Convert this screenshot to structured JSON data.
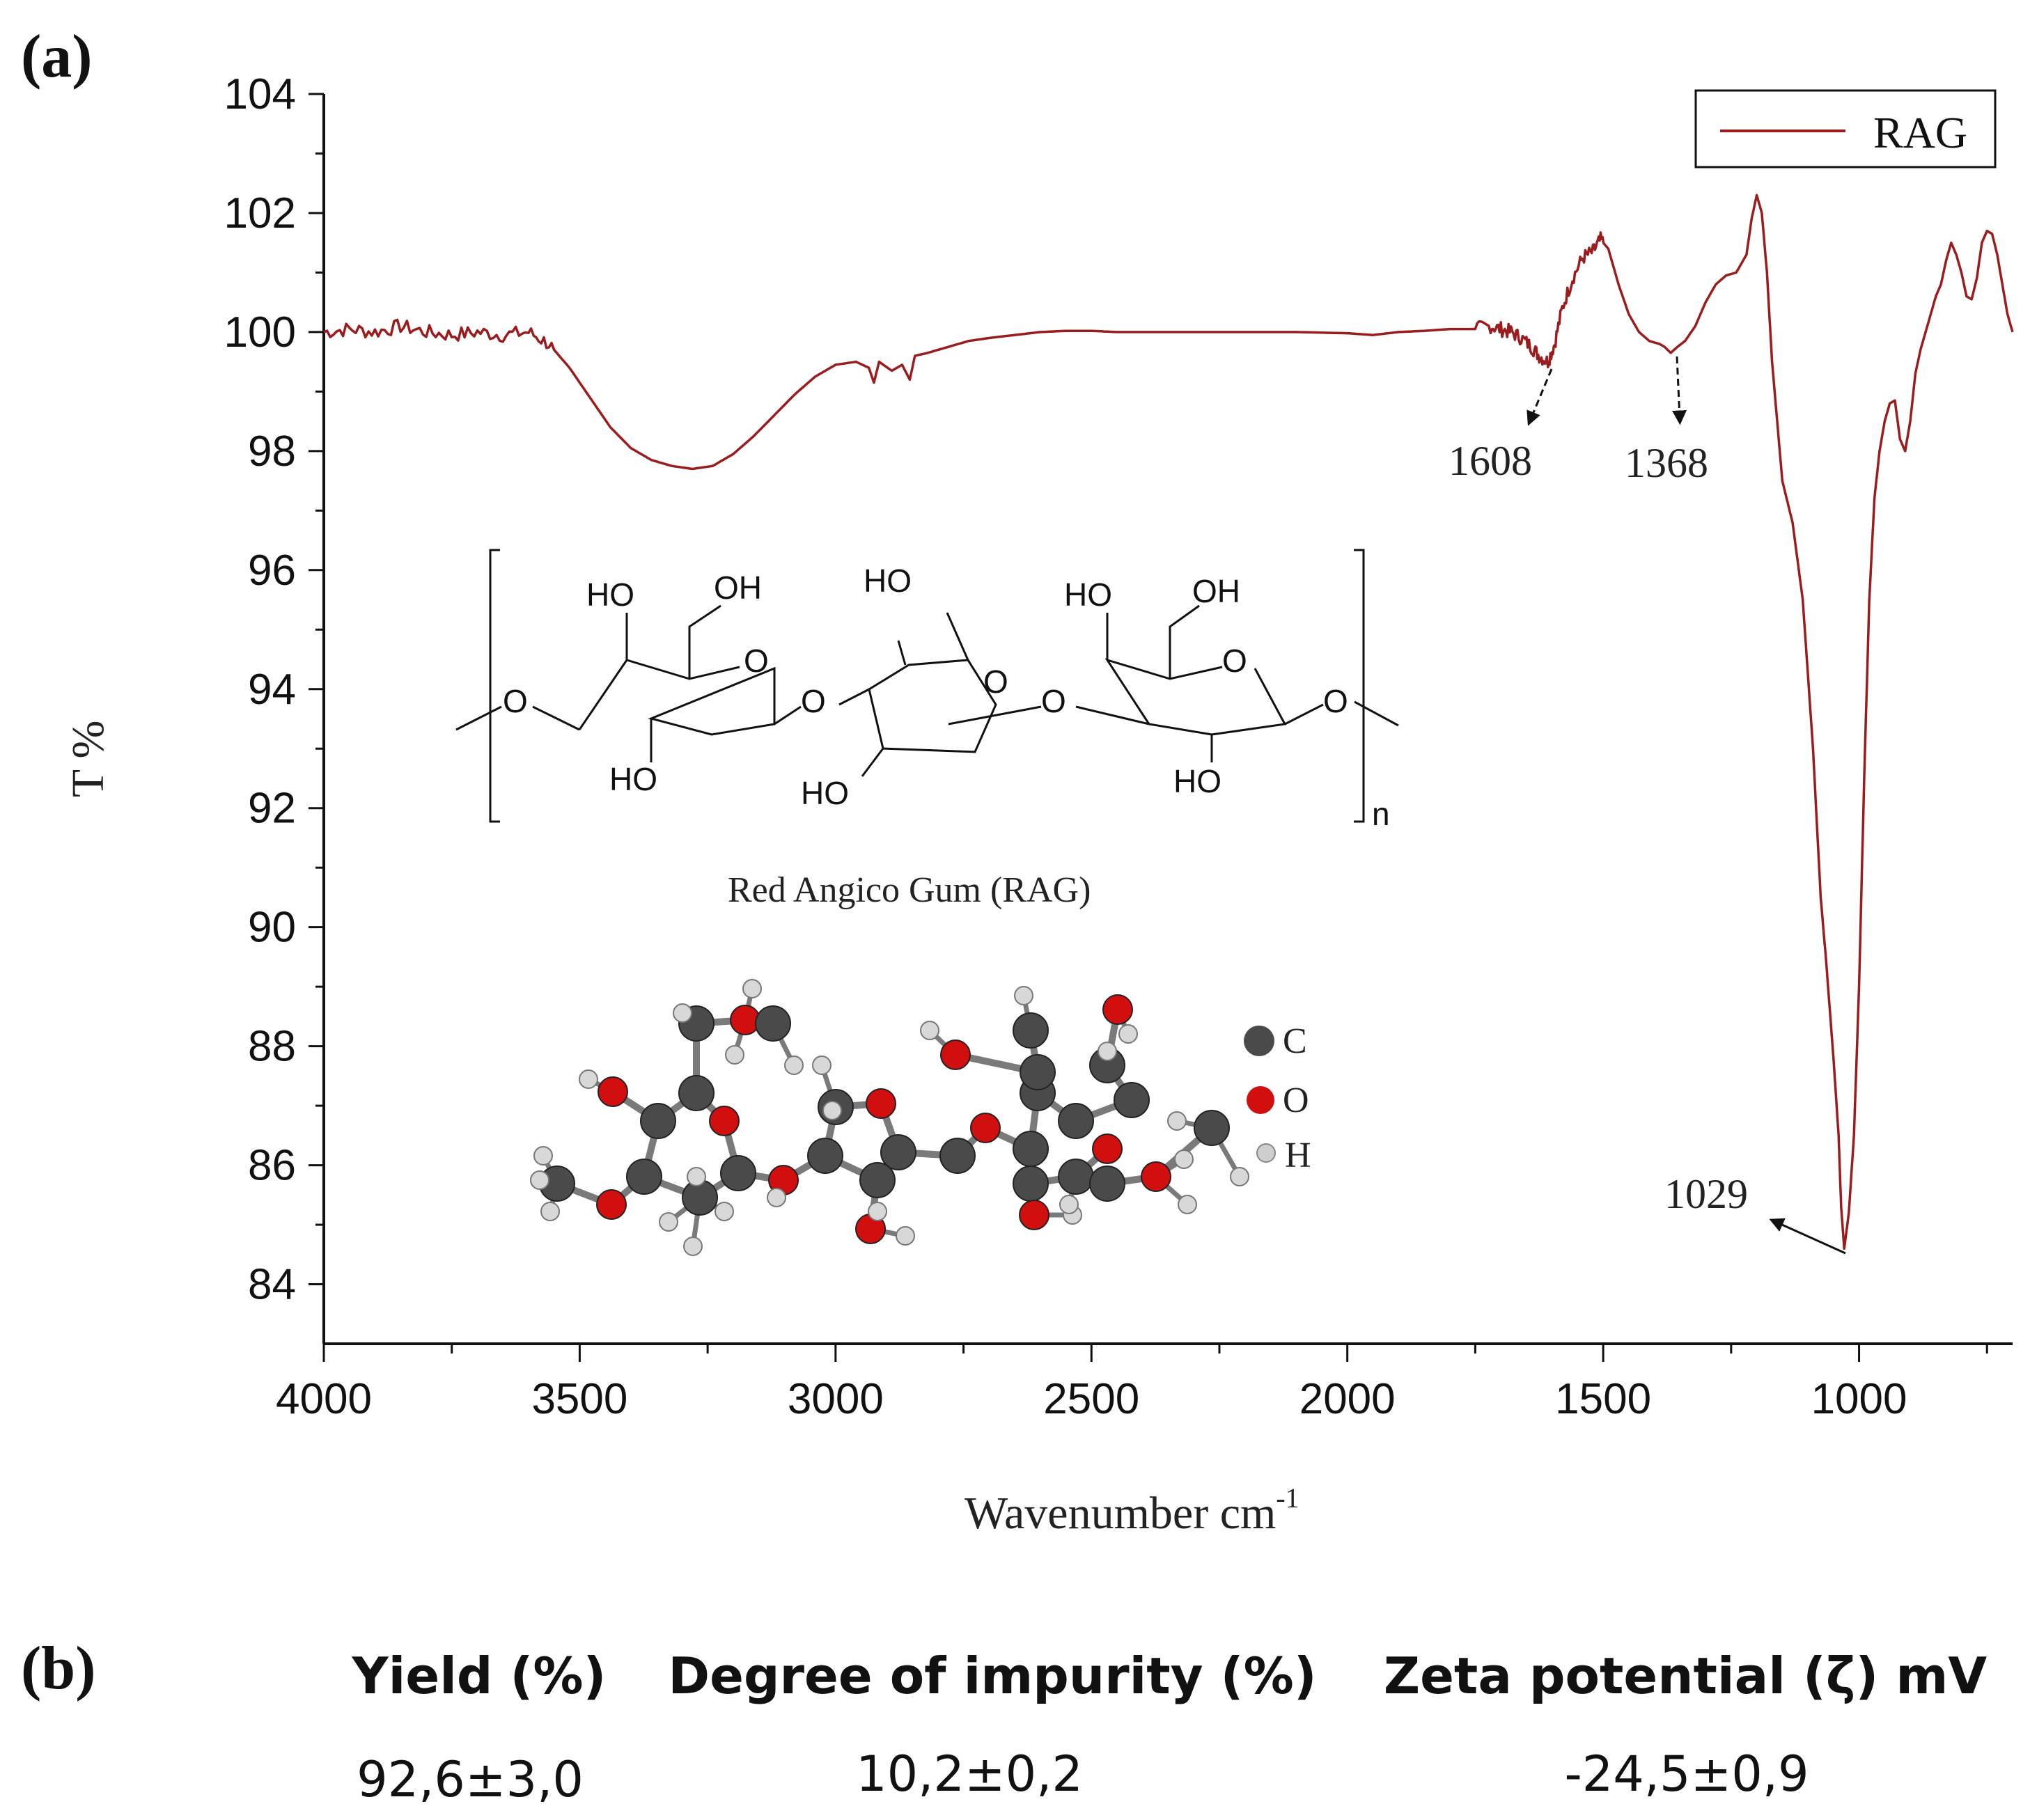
{
  "panels": {
    "a_label": "(a)",
    "b_label": "(b)"
  },
  "chart_data": {
    "type": "line",
    "series": [
      {
        "name": "RAG",
        "color": "#9b1c1c"
      }
    ],
    "points": [
      [
        4000,
        100.0
      ],
      [
        3950,
        100.05
      ],
      [
        3900,
        100.0
      ],
      [
        3850,
        100.1
      ],
      [
        3800,
        100.0
      ],
      [
        3750,
        99.95
      ],
      [
        3700,
        100.0
      ],
      [
        3650,
        99.95
      ],
      [
        3600,
        100.0
      ],
      [
        3560,
        99.8
      ],
      [
        3520,
        99.4
      ],
      [
        3480,
        98.9
      ],
      [
        3440,
        98.4
      ],
      [
        3400,
        98.05
      ],
      [
        3360,
        97.85
      ],
      [
        3320,
        97.75
      ],
      [
        3280,
        97.7
      ],
      [
        3240,
        97.75
      ],
      [
        3200,
        97.95
      ],
      [
        3160,
        98.25
      ],
      [
        3120,
        98.6
      ],
      [
        3080,
        98.95
      ],
      [
        3040,
        99.25
      ],
      [
        3000,
        99.45
      ],
      [
        2960,
        99.5
      ],
      [
        2935,
        99.4
      ],
      [
        2925,
        99.15
      ],
      [
        2915,
        99.5
      ],
      [
        2890,
        99.35
      ],
      [
        2870,
        99.45
      ],
      [
        2855,
        99.2
      ],
      [
        2845,
        99.6
      ],
      [
        2820,
        99.65
      ],
      [
        2780,
        99.75
      ],
      [
        2740,
        99.85
      ],
      [
        2700,
        99.9
      ],
      [
        2650,
        99.95
      ],
      [
        2600,
        100.0
      ],
      [
        2550,
        100.02
      ],
      [
        2500,
        100.02
      ],
      [
        2450,
        100.0
      ],
      [
        2400,
        100.0
      ],
      [
        2300,
        100.0
      ],
      [
        2200,
        100.0
      ],
      [
        2100,
        100.0
      ],
      [
        2000,
        99.98
      ],
      [
        1950,
        99.95
      ],
      [
        1900,
        100.0
      ],
      [
        1850,
        100.02
      ],
      [
        1800,
        100.05
      ],
      [
        1750,
        100.05
      ],
      [
        1720,
        100.1
      ],
      [
        1700,
        100.05
      ],
      [
        1680,
        100.0
      ],
      [
        1660,
        99.9
      ],
      [
        1640,
        99.75
      ],
      [
        1625,
        99.6
      ],
      [
        1608,
        99.5
      ],
      [
        1595,
        99.8
      ],
      [
        1580,
        100.4
      ],
      [
        1560,
        100.9
      ],
      [
        1540,
        101.25
      ],
      [
        1520,
        101.35
      ],
      [
        1505,
        101.55
      ],
      [
        1490,
        101.4
      ],
      [
        1470,
        100.8
      ],
      [
        1450,
        100.3
      ],
      [
        1430,
        100.0
      ],
      [
        1410,
        99.85
      ],
      [
        1390,
        99.8
      ],
      [
        1380,
        99.75
      ],
      [
        1368,
        99.65
      ],
      [
        1355,
        99.75
      ],
      [
        1340,
        99.85
      ],
      [
        1320,
        100.1
      ],
      [
        1300,
        100.5
      ],
      [
        1280,
        100.8
      ],
      [
        1260,
        100.95
      ],
      [
        1240,
        101.0
      ],
      [
        1220,
        101.3
      ],
      [
        1210,
        101.9
      ],
      [
        1200,
        102.3
      ],
      [
        1190,
        102.0
      ],
      [
        1180,
        101.0
      ],
      [
        1170,
        99.5
      ],
      [
        1150,
        97.5
      ],
      [
        1130,
        96.8
      ],
      [
        1110,
        95.5
      ],
      [
        1090,
        93.0
      ],
      [
        1075,
        90.5
      ],
      [
        1065,
        89.5
      ],
      [
        1050,
        87.8
      ],
      [
        1040,
        86.5
      ],
      [
        1035,
        85.3
      ],
      [
        1029,
        84.6
      ],
      [
        1020,
        85.2
      ],
      [
        1010,
        86.5
      ],
      [
        1000,
        89.0
      ],
      [
        990,
        92.5
      ],
      [
        980,
        95.5
      ],
      [
        970,
        97.2
      ],
      [
        960,
        98.0
      ],
      [
        950,
        98.5
      ],
      [
        940,
        98.8
      ],
      [
        930,
        98.85
      ],
      [
        920,
        98.2
      ],
      [
        910,
        98.0
      ],
      [
        900,
        98.5
      ],
      [
        890,
        99.3
      ],
      [
        880,
        99.7
      ],
      [
        870,
        100.0
      ],
      [
        860,
        100.3
      ],
      [
        850,
        100.6
      ],
      [
        840,
        100.8
      ],
      [
        830,
        101.2
      ],
      [
        820,
        101.5
      ],
      [
        810,
        101.3
      ],
      [
        800,
        101.0
      ],
      [
        790,
        100.6
      ],
      [
        780,
        100.55
      ],
      [
        770,
        100.9
      ],
      [
        760,
        101.5
      ],
      [
        750,
        101.7
      ],
      [
        740,
        101.65
      ],
      [
        730,
        101.3
      ],
      [
        720,
        100.8
      ],
      [
        710,
        100.3
      ],
      [
        700,
        100.0
      ]
    ],
    "x_range": [
      4000,
      700
    ],
    "x_ticks": [
      4000,
      3500,
      3000,
      2500,
      2000,
      1500,
      1000
    ],
    "x_tick_labels": [
      "4000",
      "3500",
      "3000",
      "2500",
      "2000",
      "1500",
      "1000"
    ],
    "y_range": [
      83,
      104
    ],
    "y_ticks": [
      84,
      86,
      88,
      90,
      92,
      94,
      96,
      98,
      100,
      102,
      104
    ],
    "y_tick_labels": [
      "84",
      "86",
      "88",
      "90",
      "92",
      "94",
      "96",
      "98",
      "100",
      "102",
      "104"
    ],
    "xlabel": "Wavenumber cm",
    "xlabel_sup": "-1",
    "ylabel": "T %",
    "legend": {
      "label": "RAG",
      "position": "top-right"
    },
    "annotations": [
      {
        "label": "1608",
        "x": 1608,
        "y": 99.5
      },
      {
        "label": "1368",
        "x": 1368,
        "y": 99.65
      },
      {
        "label": "1029",
        "x": 1029,
        "y": 84.6
      }
    ]
  },
  "structure": {
    "name": "Red Angico Gum (RAG)",
    "labels": {
      "ho": "HO",
      "oh": "OH",
      "o": "O",
      "n": "n"
    }
  },
  "atom_legend": {
    "carbon": "C",
    "oxygen": "O",
    "hydrogen": "H"
  },
  "colors": {
    "carbon": "#4a4a4a",
    "oxygen": "#d10f0f",
    "hydrogen": "#d8d8d8",
    "bond": "#7a7a7a"
  },
  "table": {
    "headers": [
      "Yield (%)",
      "Degree of impurity (%)",
      "Zeta potential (ζ) mV"
    ],
    "values": [
      "92,6±3,0",
      "10,2±0,2",
      "-24,5±0,9"
    ]
  }
}
